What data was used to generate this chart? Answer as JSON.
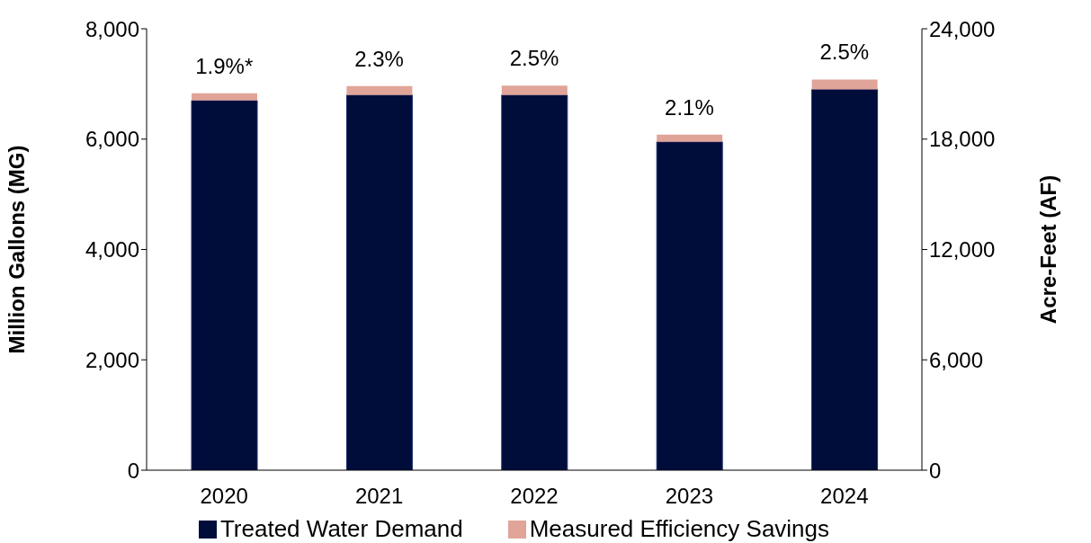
{
  "chart_data": {
    "type": "bar",
    "stacked": true,
    "categories": [
      "2020",
      "2021",
      "2022",
      "2023",
      "2024"
    ],
    "series": [
      {
        "name": "Treated Water Demand",
        "color": "#000c3a",
        "values": [
          6700,
          6800,
          6800,
          5950,
          6900
        ]
      },
      {
        "name": "Measured Efficiency Savings",
        "color": "#e0a498",
        "values": [
          130,
          160,
          170,
          130,
          180
        ]
      }
    ],
    "annotations": [
      {
        "text": "1.9%*",
        "x": "2020",
        "y": 6830
      },
      {
        "text": "2.3%",
        "x": "2021",
        "y": 6960
      },
      {
        "text": "2.5%",
        "x": "2022",
        "y": 6970
      },
      {
        "text": "2.1%",
        "x": "2023",
        "y": 6080
      },
      {
        "text": "2.5%",
        "x": "2024",
        "y": 7080
      }
    ],
    "ylabel": "Million Gallons (MG)",
    "y2label": "Acre-Feet (AF)",
    "ylim": [
      0,
      8000
    ],
    "yticks": [
      0,
      {
        "value": 2000,
        "label": "2,000"
      },
      {
        "value": 4000,
        "label": "4,000"
      },
      {
        "value": 6000,
        "label": "6,000"
      },
      {
        "value": 8000,
        "label": "8,000"
      }
    ],
    "y2lim": [
      0,
      24000
    ],
    "y2ticks": [
      0,
      {
        "value": 6000,
        "label": "6,000"
      },
      {
        "value": 12000,
        "label": "12,000"
      },
      {
        "value": 18000,
        "label": "18,000"
      },
      {
        "value": 24000,
        "label": "24,000"
      }
    ],
    "grid": false,
    "legend": "bottom"
  }
}
